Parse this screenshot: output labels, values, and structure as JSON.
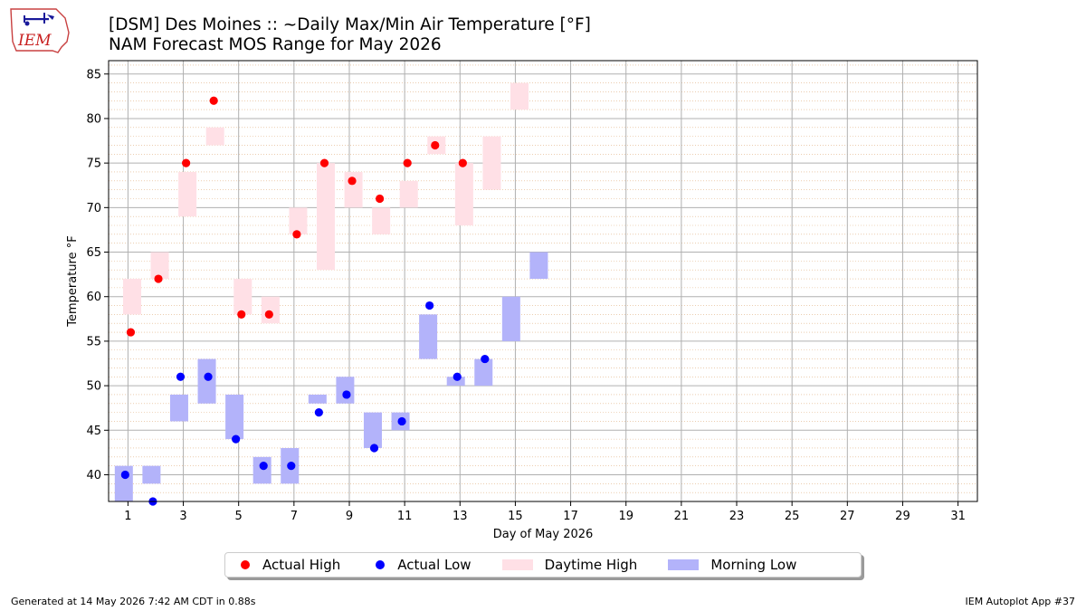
{
  "header": {
    "title_line1": "[DSM] Des Moines :: ~Daily Max/Min Air Temperature [°F]",
    "title_line2": "NAM Forecast MOS Range for May 2026",
    "logo_text": "IEM"
  },
  "footer": {
    "generated": "Generated at 14 May 2026 7:42 AM CDT in 0.88s",
    "app": "IEM Autoplot App #37"
  },
  "legend": [
    {
      "label": "Actual High",
      "color": "#ff0000",
      "kind": "dot"
    },
    {
      "label": "Actual Low",
      "color": "#0000ff",
      "kind": "dot"
    },
    {
      "label": "Daytime High",
      "color": "#ffe0e6",
      "kind": "box"
    },
    {
      "label": "Morning Low",
      "color": "#b3b3fa",
      "kind": "box"
    }
  ],
  "colors": {
    "actual_high": "#ff0000",
    "actual_low": "#0000ff",
    "high_range": "#ffe0e6",
    "low_range": "#b3b3fa",
    "grid_major": "#b0b0b0",
    "grid_minor": "#e0b080"
  },
  "chart_data": {
    "type": "bar",
    "xlabel": "Day of May 2026",
    "ylabel": "Temperature °F",
    "xlim": [
      0.3,
      31.7
    ],
    "ylim": [
      37,
      86.5
    ],
    "xticks": [
      1,
      3,
      5,
      7,
      9,
      11,
      13,
      15,
      17,
      19,
      21,
      23,
      25,
      27,
      29,
      31
    ],
    "yticks": [
      40,
      45,
      50,
      55,
      60,
      65,
      70,
      75,
      80,
      85
    ],
    "grid": true,
    "minor_grid_step": 1,
    "high_ranges": [
      {
        "day": 1,
        "min": 58,
        "max": 62
      },
      {
        "day": 2,
        "min": 62,
        "max": 65
      },
      {
        "day": 3,
        "min": 69,
        "max": 74
      },
      {
        "day": 4,
        "min": 77,
        "max": 79
      },
      {
        "day": 5,
        "min": 58,
        "max": 62
      },
      {
        "day": 6,
        "min": 57,
        "max": 60
      },
      {
        "day": 7,
        "min": 67,
        "max": 70
      },
      {
        "day": 8,
        "min": 63,
        "max": 75
      },
      {
        "day": 9,
        "min": 70,
        "max": 74
      },
      {
        "day": 10,
        "min": 67,
        "max": 70
      },
      {
        "day": 11,
        "min": 70,
        "max": 73
      },
      {
        "day": 12,
        "min": 76,
        "max": 78
      },
      {
        "day": 13,
        "min": 68,
        "max": 75
      },
      {
        "day": 14,
        "min": 72,
        "max": 78
      },
      {
        "day": 15,
        "min": 81,
        "max": 84
      }
    ],
    "low_ranges": [
      {
        "day": 1,
        "min": 37,
        "max": 41
      },
      {
        "day": 2,
        "min": 39,
        "max": 41
      },
      {
        "day": 3,
        "min": 46,
        "max": 49
      },
      {
        "day": 4,
        "min": 48,
        "max": 53
      },
      {
        "day": 5,
        "min": 44,
        "max": 49
      },
      {
        "day": 6,
        "min": 39,
        "max": 42
      },
      {
        "day": 7,
        "min": 39,
        "max": 43
      },
      {
        "day": 8,
        "min": 48,
        "max": 49
      },
      {
        "day": 9,
        "min": 48,
        "max": 51
      },
      {
        "day": 10,
        "min": 43,
        "max": 47
      },
      {
        "day": 11,
        "min": 45,
        "max": 47
      },
      {
        "day": 12,
        "min": 53,
        "max": 58
      },
      {
        "day": 13,
        "min": 50,
        "max": 51
      },
      {
        "day": 14,
        "min": 50,
        "max": 53
      },
      {
        "day": 15,
        "min": 55,
        "max": 60
      },
      {
        "day": 16,
        "min": 62,
        "max": 65
      }
    ],
    "actual_highs": [
      {
        "day": 1,
        "value": 56
      },
      {
        "day": 2,
        "value": 62
      },
      {
        "day": 3,
        "value": 75
      },
      {
        "day": 4,
        "value": 82
      },
      {
        "day": 5,
        "value": 58
      },
      {
        "day": 6,
        "value": 58
      },
      {
        "day": 7,
        "value": 67
      },
      {
        "day": 8,
        "value": 75
      },
      {
        "day": 9,
        "value": 73
      },
      {
        "day": 10,
        "value": 71
      },
      {
        "day": 11,
        "value": 75
      },
      {
        "day": 12,
        "value": 77
      },
      {
        "day": 13,
        "value": 75
      }
    ],
    "actual_lows": [
      {
        "day": 1,
        "value": 40
      },
      {
        "day": 2,
        "value": 37
      },
      {
        "day": 3,
        "value": 51
      },
      {
        "day": 4,
        "value": 51
      },
      {
        "day": 5,
        "value": 44
      },
      {
        "day": 6,
        "value": 41
      },
      {
        "day": 7,
        "value": 41
      },
      {
        "day": 8,
        "value": 47
      },
      {
        "day": 9,
        "value": 49
      },
      {
        "day": 10,
        "value": 43
      },
      {
        "day": 11,
        "value": 46
      },
      {
        "day": 12,
        "value": 59
      },
      {
        "day": 13,
        "value": 51
      },
      {
        "day": 14,
        "value": 53
      }
    ]
  }
}
